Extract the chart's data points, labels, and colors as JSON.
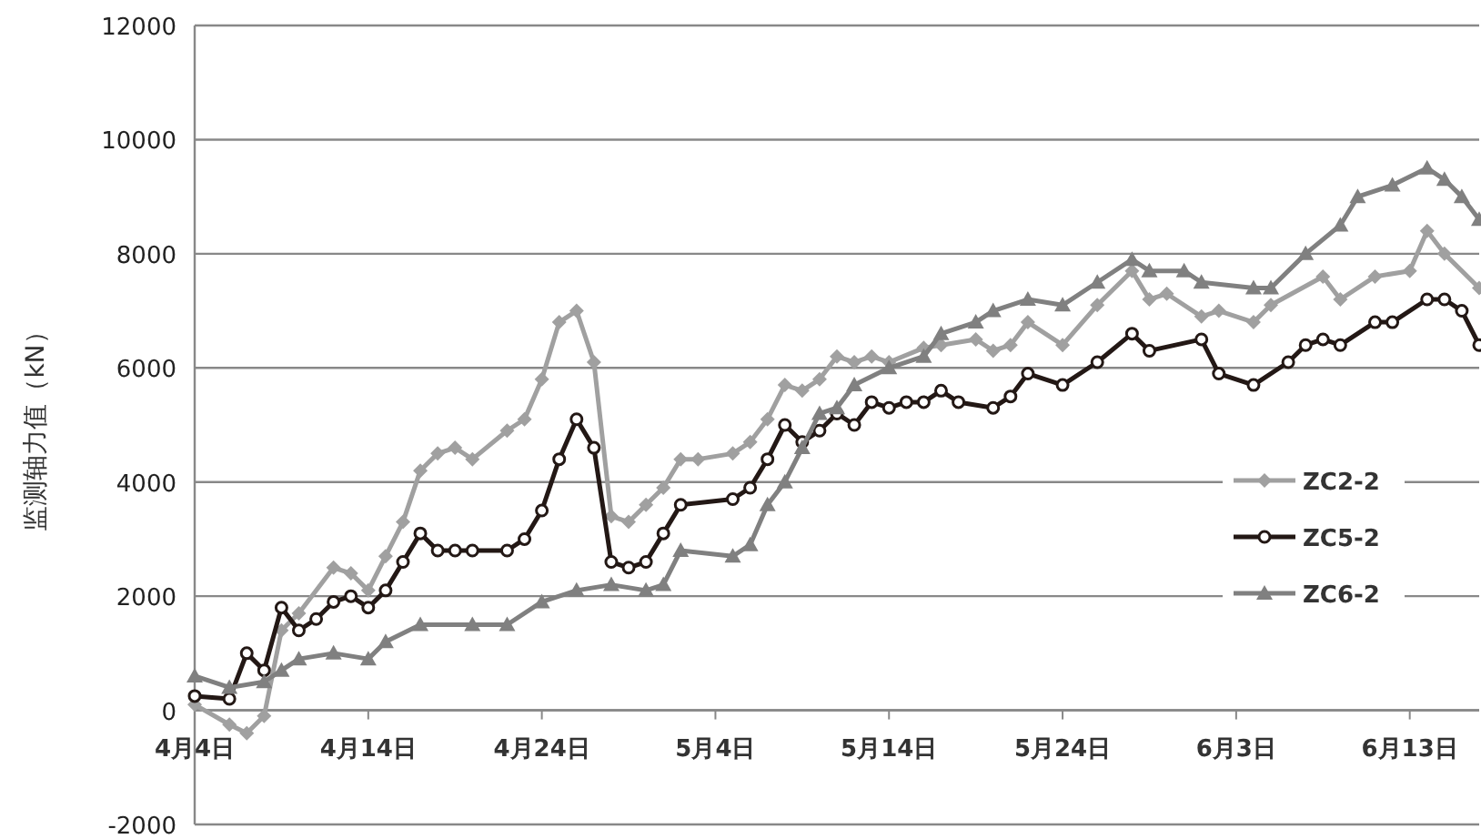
{
  "chart_data": {
    "type": "line",
    "ylabel": "监测轴力值（kN）",
    "xlim": [
      "--04-04",
      "--06-17"
    ],
    "xticks": [
      {
        "value": "--04-04",
        "label": "4月4日"
      },
      {
        "value": "--04-14",
        "label": "4月14日"
      },
      {
        "value": "--04-24",
        "label": "4月24日"
      },
      {
        "value": "--05-04",
        "label": "5月4日"
      },
      {
        "value": "--05-14",
        "label": "5月14日"
      },
      {
        "value": "--05-24",
        "label": "5月24日"
      },
      {
        "value": "--06-03",
        "label": "6月3日"
      },
      {
        "value": "--06-13",
        "label": "6月13日"
      }
    ],
    "ylim": [
      -2000,
      12000
    ],
    "yticks": [
      -2000,
      0,
      2000,
      4000,
      6000,
      8000,
      10000,
      12000
    ],
    "grid": "y",
    "legend": "right",
    "series": [
      {
        "name": "ZC2-2",
        "color": "#a0a0a0",
        "marker": "diamond",
        "x": [
          "--04-04",
          "--04-06",
          "--04-07",
          "--04-08",
          "--04-09",
          "--04-10",
          "--04-12",
          "--04-13",
          "--04-14",
          "--04-15",
          "--04-16",
          "--04-17",
          "--04-18",
          "--04-19",
          "--04-20",
          "--04-22",
          "--04-23",
          "--04-24",
          "--04-25",
          "--04-26",
          "--04-27",
          "--04-28",
          "--04-29",
          "--04-30",
          "--05-01",
          "--05-02",
          "--05-03",
          "--05-05",
          "--05-06",
          "--05-07",
          "--05-08",
          "--05-09",
          "--05-10",
          "--05-11",
          "--05-12",
          "--05-13",
          "--05-14",
          "--05-16",
          "--05-17",
          "--05-19",
          "--05-20",
          "--05-21",
          "--05-22",
          "--05-24",
          "--05-26",
          "--05-28",
          "--05-29",
          "--05-30",
          "--06-01",
          "--06-02",
          "--06-04",
          "--06-05",
          "--06-08",
          "--06-09",
          "--06-11",
          "--06-13",
          "--06-14",
          "--06-15",
          "--06-17"
        ],
        "values": [
          100,
          -250,
          -400,
          -100,
          1400,
          1700,
          2500,
          2400,
          2100,
          2700,
          3300,
          4200,
          4500,
          4600,
          4400,
          4900,
          5100,
          5800,
          6800,
          7000,
          6100,
          3400,
          3300,
          3600,
          3900,
          4400,
          4400,
          4500,
          4700,
          5100,
          5700,
          5600,
          5800,
          6200,
          6100,
          6200,
          6100,
          6350,
          6400,
          6500,
          6300,
          6400,
          6800,
          6400,
          7100,
          7700,
          7200,
          7300,
          6900,
          7000,
          6800,
          7100,
          7600,
          7200,
          7600,
          7700,
          8400,
          8000,
          7400
        ]
      },
      {
        "name": "ZC5-2",
        "color": "#231815",
        "marker": "circle",
        "x": [
          "--04-04",
          "--04-06",
          "--04-07",
          "--04-08",
          "--04-09",
          "--04-10",
          "--04-11",
          "--04-12",
          "--04-13",
          "--04-14",
          "--04-15",
          "--04-16",
          "--04-17",
          "--04-18",
          "--04-19",
          "--04-20",
          "--04-22",
          "--04-23",
          "--04-24",
          "--04-25",
          "--04-26",
          "--04-27",
          "--04-28",
          "--04-29",
          "--04-30",
          "--05-01",
          "--05-02",
          "--05-05",
          "--05-06",
          "--05-07",
          "--05-08",
          "--05-09",
          "--05-10",
          "--05-11",
          "--05-12",
          "--05-13",
          "--05-14",
          "--05-15",
          "--05-16",
          "--05-17",
          "--05-18",
          "--05-20",
          "--05-21",
          "--05-22",
          "--05-24",
          "--05-26",
          "--05-28",
          "--05-29",
          "--06-01",
          "--06-02",
          "--06-04",
          "--06-06",
          "--06-07",
          "--06-08",
          "--06-09",
          "--06-11",
          "--06-12",
          "--06-14",
          "--06-15",
          "--06-16",
          "--06-17"
        ],
        "values": [
          250,
          200,
          1000,
          700,
          1800,
          1400,
          1600,
          1900,
          2000,
          1800,
          2100,
          2600,
          3100,
          2800,
          2800,
          2800,
          2800,
          3000,
          3500,
          4400,
          5100,
          4600,
          2600,
          2500,
          2600,
          3100,
          3600,
          3700,
          3900,
          4400,
          5000,
          4700,
          4900,
          5200,
          5000,
          5400,
          5300,
          5400,
          5400,
          5600,
          5400,
          5300,
          5500,
          5900,
          5700,
          6100,
          6600,
          6300,
          6500,
          5900,
          5700,
          6100,
          6400,
          6500,
          6400,
          6800,
          6800,
          7200,
          7200,
          7000,
          6400
        ]
      },
      {
        "name": "ZC6-2",
        "color": "#808080",
        "marker": "triangle",
        "x": [
          "--04-04",
          "--04-06",
          "--04-08",
          "--04-09",
          "--04-10",
          "--04-12",
          "--04-14",
          "--04-15",
          "--04-17",
          "--04-20",
          "--04-22",
          "--04-24",
          "--04-26",
          "--04-28",
          "--04-30",
          "--05-01",
          "--05-02",
          "--05-05",
          "--05-06",
          "--05-07",
          "--05-08",
          "--05-09",
          "--05-10",
          "--05-11",
          "--05-12",
          "--05-14",
          "--05-16",
          "--05-17",
          "--05-19",
          "--05-20",
          "--05-22",
          "--05-24",
          "--05-26",
          "--05-28",
          "--05-29",
          "--05-31",
          "--06-01",
          "--06-04",
          "--06-05",
          "--06-07",
          "--06-09",
          "--06-10",
          "--06-12",
          "--06-14",
          "--06-15",
          "--06-16",
          "--06-17"
        ],
        "values": [
          600,
          400,
          500,
          700,
          900,
          1000,
          900,
          1200,
          1500,
          1500,
          1500,
          1900,
          2100,
          2200,
          2100,
          2200,
          2800,
          2700,
          2900,
          3600,
          4000,
          4600,
          5200,
          5300,
          5700,
          6000,
          6200,
          6600,
          6800,
          7000,
          7200,
          7100,
          7500,
          7900,
          7700,
          7700,
          7500,
          7400,
          7400,
          8000,
          8500,
          9000,
          9200,
          9500,
          9300,
          9000,
          8600
        ]
      }
    ]
  }
}
